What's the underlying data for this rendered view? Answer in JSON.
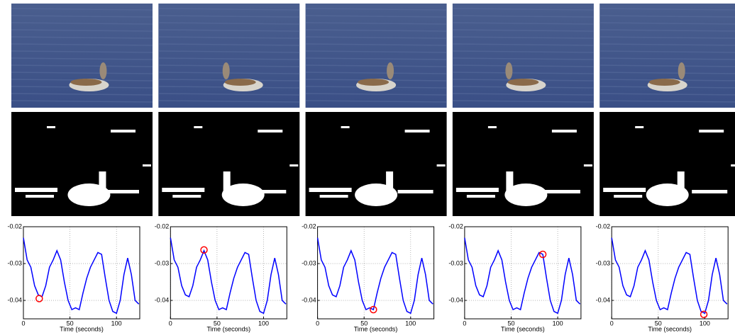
{
  "chart_data": [
    {
      "type": "line",
      "x_label": "Time (seconds)",
      "xlim": [
        0,
        125
      ],
      "ylim": [
        -0.045,
        -0.02
      ],
      "xticks": [
        0,
        50,
        100
      ],
      "yticks": [
        -0.02,
        -0.03,
        -0.04
      ],
      "grid": true,
      "x": [
        0,
        4,
        8,
        12,
        16,
        20,
        24,
        28,
        32,
        36,
        40,
        44,
        48,
        52,
        56,
        60,
        64,
        68,
        72,
        76,
        80,
        84,
        88,
        92,
        96,
        100,
        104,
        108,
        112,
        116,
        120,
        124
      ],
      "series": [
        {
          "color": "#0000ff",
          "values": [
            -0.023,
            -0.029,
            -0.031,
            -0.036,
            -0.0385,
            -0.039,
            -0.036,
            -0.031,
            -0.029,
            -0.0265,
            -0.029,
            -0.035,
            -0.04,
            -0.0425,
            -0.042,
            -0.0425,
            -0.038,
            -0.034,
            -0.031,
            -0.029,
            -0.027,
            -0.0275,
            -0.034,
            -0.04,
            -0.043,
            -0.0435,
            -0.04,
            -0.033,
            -0.0285,
            -0.033,
            -0.04,
            -0.041
          ]
        }
      ],
      "highlight": {
        "x": 17,
        "y": -0.0395,
        "color": "#ff0000"
      }
    },
    {
      "type": "line",
      "x_label": "Time (seconds)",
      "xlim": [
        0,
        125
      ],
      "ylim": [
        -0.045,
        -0.02
      ],
      "xticks": [
        0,
        50,
        100
      ],
      "yticks": [
        -0.02,
        -0.03,
        -0.04
      ],
      "grid": true,
      "x": [
        0,
        4,
        8,
        12,
        16,
        20,
        24,
        28,
        32,
        36,
        40,
        44,
        48,
        52,
        56,
        60,
        64,
        68,
        72,
        76,
        80,
        84,
        88,
        92,
        96,
        100,
        104,
        108,
        112,
        116,
        120,
        124
      ],
      "series": [
        {
          "color": "#0000ff",
          "values": [
            -0.023,
            -0.029,
            -0.031,
            -0.036,
            -0.0385,
            -0.039,
            -0.036,
            -0.031,
            -0.029,
            -0.0265,
            -0.029,
            -0.035,
            -0.04,
            -0.0425,
            -0.042,
            -0.0425,
            -0.038,
            -0.034,
            -0.031,
            -0.029,
            -0.027,
            -0.0275,
            -0.034,
            -0.04,
            -0.043,
            -0.0435,
            -0.04,
            -0.033,
            -0.0285,
            -0.033,
            -0.04,
            -0.041
          ]
        }
      ],
      "highlight": {
        "x": 36,
        "y": -0.0263,
        "color": "#ff0000"
      }
    },
    {
      "type": "line",
      "x_label": "Time (seconds)",
      "xlim": [
        0,
        125
      ],
      "ylim": [
        -0.045,
        -0.02
      ],
      "xticks": [
        0,
        50,
        100
      ],
      "yticks": [
        -0.02,
        -0.03,
        -0.04
      ],
      "grid": true,
      "x": [
        0,
        4,
        8,
        12,
        16,
        20,
        24,
        28,
        32,
        36,
        40,
        44,
        48,
        52,
        56,
        60,
        64,
        68,
        72,
        76,
        80,
        84,
        88,
        92,
        96,
        100,
        104,
        108,
        112,
        116,
        120,
        124
      ],
      "series": [
        {
          "color": "#0000ff",
          "values": [
            -0.023,
            -0.029,
            -0.031,
            -0.036,
            -0.0385,
            -0.039,
            -0.036,
            -0.031,
            -0.029,
            -0.0265,
            -0.029,
            -0.035,
            -0.04,
            -0.0425,
            -0.042,
            -0.0425,
            -0.038,
            -0.034,
            -0.031,
            -0.029,
            -0.027,
            -0.0275,
            -0.034,
            -0.04,
            -0.043,
            -0.0435,
            -0.04,
            -0.033,
            -0.0285,
            -0.033,
            -0.04,
            -0.041
          ]
        }
      ],
      "highlight": {
        "x": 60,
        "y": -0.0425,
        "color": "#ff0000"
      }
    },
    {
      "type": "line",
      "x_label": "Time (seconds)",
      "xlim": [
        0,
        125
      ],
      "ylim": [
        -0.045,
        -0.02
      ],
      "xticks": [
        0,
        50,
        100
      ],
      "yticks": [
        -0.02,
        -0.03,
        -0.04
      ],
      "grid": true,
      "x": [
        0,
        4,
        8,
        12,
        16,
        20,
        24,
        28,
        32,
        36,
        40,
        44,
        48,
        52,
        56,
        60,
        64,
        68,
        72,
        76,
        80,
        84,
        88,
        92,
        96,
        100,
        104,
        108,
        112,
        116,
        120,
        124
      ],
      "series": [
        {
          "color": "#0000ff",
          "values": [
            -0.023,
            -0.029,
            -0.031,
            -0.036,
            -0.0385,
            -0.039,
            -0.036,
            -0.031,
            -0.029,
            -0.0265,
            -0.029,
            -0.035,
            -0.04,
            -0.0425,
            -0.042,
            -0.0425,
            -0.038,
            -0.034,
            -0.031,
            -0.029,
            -0.027,
            -0.0275,
            -0.034,
            -0.04,
            -0.043,
            -0.0435,
            -0.04,
            -0.033,
            -0.0285,
            -0.033,
            -0.04,
            -0.041
          ]
        }
      ],
      "highlight": {
        "x": 84,
        "y": -0.0275,
        "color": "#ff0000"
      }
    },
    {
      "type": "line",
      "x_label": "Time (seconds)",
      "xlim": [
        0,
        125
      ],
      "ylim": [
        -0.045,
        -0.02
      ],
      "xticks": [
        0,
        50,
        100
      ],
      "yticks": [
        -0.02,
        -0.03,
        -0.04
      ],
      "grid": true,
      "x": [
        0,
        4,
        8,
        12,
        16,
        20,
        24,
        28,
        32,
        36,
        40,
        44,
        48,
        52,
        56,
        60,
        64,
        68,
        72,
        76,
        80,
        84,
        88,
        92,
        96,
        100,
        104,
        108,
        112,
        116,
        120,
        124
      ],
      "series": [
        {
          "color": "#0000ff",
          "values": [
            -0.023,
            -0.029,
            -0.031,
            -0.036,
            -0.0385,
            -0.039,
            -0.036,
            -0.031,
            -0.029,
            -0.0265,
            -0.029,
            -0.035,
            -0.04,
            -0.0425,
            -0.042,
            -0.0425,
            -0.038,
            -0.034,
            -0.031,
            -0.029,
            -0.027,
            -0.0275,
            -0.034,
            -0.04,
            -0.043,
            -0.0435,
            -0.04,
            -0.033,
            -0.0285,
            -0.033,
            -0.04,
            -0.041
          ]
        }
      ],
      "highlight": {
        "x": 99,
        "y": -0.0438,
        "color": "#ff0000"
      }
    }
  ]
}
